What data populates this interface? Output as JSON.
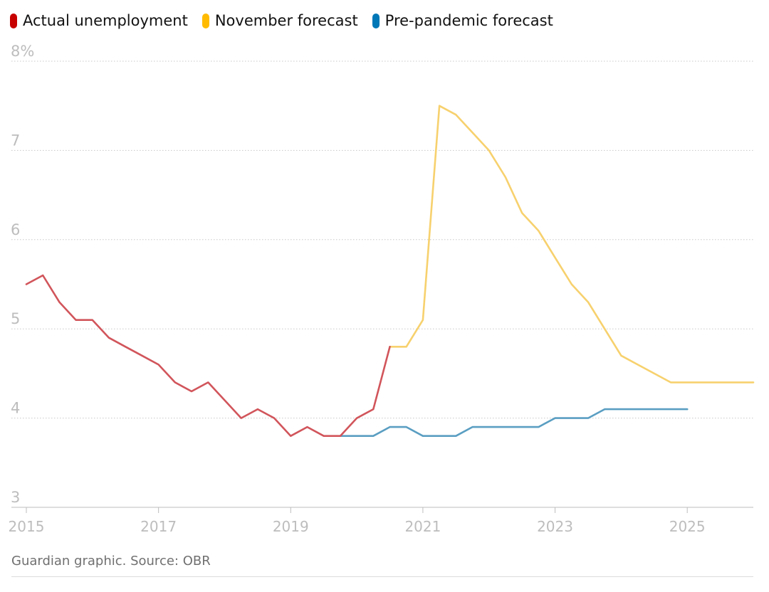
{
  "chart_data": {
    "type": "line",
    "title": "",
    "xlabel": "",
    "ylabel": "",
    "y_unit": "%",
    "ylim": [
      3,
      8
    ],
    "xlim": [
      2015,
      2026
    ],
    "y_ticks": [
      {
        "value": 8,
        "label": "8%"
      },
      {
        "value": 7,
        "label": "7"
      },
      {
        "value": 6,
        "label": "6"
      },
      {
        "value": 5,
        "label": "5"
      },
      {
        "value": 4,
        "label": "4"
      },
      {
        "value": 3,
        "label": "3"
      }
    ],
    "x_ticks": [
      {
        "value": 2015,
        "label": "2015"
      },
      {
        "value": 2017,
        "label": "2017"
      },
      {
        "value": 2019,
        "label": "2019"
      },
      {
        "value": 2021,
        "label": "2021"
      },
      {
        "value": 2023,
        "label": "2023"
      },
      {
        "value": 2025,
        "label": "2025"
      }
    ],
    "series": [
      {
        "name": "Actual unemployment",
        "color": "#c70000",
        "line_color": "#d1555b",
        "x": [
          2015.0,
          2015.25,
          2015.5,
          2015.75,
          2016.0,
          2016.25,
          2016.5,
          2016.75,
          2017.0,
          2017.25,
          2017.5,
          2017.75,
          2018.0,
          2018.25,
          2018.5,
          2018.75,
          2019.0,
          2019.25,
          2019.5,
          2019.75,
          2020.0,
          2020.25,
          2020.5
        ],
        "values": [
          5.5,
          5.6,
          5.3,
          5.1,
          5.1,
          4.9,
          4.8,
          4.7,
          4.6,
          4.4,
          4.3,
          4.4,
          4.2,
          4.0,
          4.1,
          4.0,
          3.8,
          3.9,
          3.8,
          3.8,
          4.0,
          4.1,
          4.8
        ]
      },
      {
        "name": "November forecast",
        "color": "#ffbb00",
        "line_color": "#f7d16e",
        "x": [
          2020.5,
          2020.75,
          2021.0,
          2021.25,
          2021.5,
          2021.75,
          2022.0,
          2022.25,
          2022.5,
          2022.75,
          2023.0,
          2023.25,
          2023.5,
          2023.75,
          2024.0,
          2024.25,
          2024.5,
          2024.75,
          2025.0,
          2025.25,
          2025.5,
          2025.75,
          2026.0
        ],
        "values": [
          4.8,
          4.8,
          5.1,
          7.5,
          7.4,
          7.2,
          7.0,
          6.7,
          6.3,
          6.1,
          5.8,
          5.5,
          5.3,
          5.0,
          4.7,
          4.6,
          4.5,
          4.4,
          4.4,
          4.4,
          4.4,
          4.4,
          4.4
        ]
      },
      {
        "name": "Pre-pandemic forecast",
        "color": "#0077b6",
        "line_color": "#5a9ec2",
        "x": [
          2019.75,
          2020.0,
          2020.25,
          2020.5,
          2020.75,
          2021.0,
          2021.25,
          2021.5,
          2021.75,
          2022.0,
          2022.25,
          2022.5,
          2022.75,
          2023.0,
          2023.25,
          2023.5,
          2023.75,
          2024.0,
          2024.25,
          2024.5,
          2024.75,
          2025.0
        ],
        "values": [
          3.8,
          3.8,
          3.8,
          3.9,
          3.9,
          3.8,
          3.8,
          3.8,
          3.9,
          3.9,
          3.9,
          3.9,
          3.9,
          4.0,
          4.0,
          4.0,
          4.1,
          4.1,
          4.1,
          4.1,
          4.1,
          4.1
        ]
      }
    ]
  },
  "source": "Guardian graphic. Source: OBR"
}
